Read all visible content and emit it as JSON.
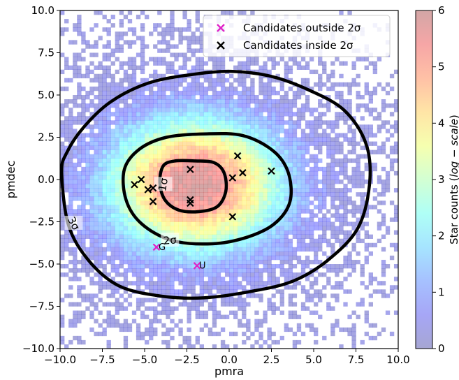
{
  "chart_data": {
    "type": "heatmap",
    "xlabel": "pmra",
    "ylabel": "pmdec",
    "xlim": [
      -10,
      10
    ],
    "ylim": [
      -10,
      10
    ],
    "xticks": [
      -10.0,
      -7.5,
      -5.0,
      -2.5,
      0.0,
      2.5,
      5.0,
      7.5,
      10.0
    ],
    "yticks": [
      -10.0,
      -7.5,
      -5.0,
      -2.5,
      0.0,
      2.5,
      5.0,
      7.5,
      10.0
    ],
    "xtick_labels": [
      "−10.0",
      "−7.5",
      "−5.0",
      "−2.5",
      "0.0",
      "2.5",
      "5.0",
      "7.5",
      "10.0"
    ],
    "ytick_labels": [
      "−10.0",
      "−7.5",
      "−5.0",
      "−2.5",
      "0.0",
      "2.5",
      "5.0",
      "7.5",
      "10.0"
    ],
    "density": {
      "center": [
        -2.0,
        -0.3
      ],
      "peak_log_count": 6,
      "bins_per_axis": 80
    },
    "colorbar": {
      "label_prefix": "Star counts (",
      "label_math": "log − scale",
      "label_suffix": ")",
      "range": [
        0,
        6
      ],
      "ticks": [
        0,
        1,
        2,
        3,
        4,
        5,
        6
      ],
      "tick_labels": [
        "0",
        "1",
        "2",
        "3",
        "4",
        "5",
        "6"
      ],
      "colormap": "jet",
      "alpha": 0.35
    },
    "contours": [
      {
        "label": "1σ",
        "label_at": [
          -3.9,
          -0.3
        ],
        "points": [
          [
            -3.9,
            0.8
          ],
          [
            -4.1,
            -0.2
          ],
          [
            -3.8,
            -1.2
          ],
          [
            -3.0,
            -1.8
          ],
          [
            -1.8,
            -1.9
          ],
          [
            -0.7,
            -1.6
          ],
          [
            -0.2,
            -0.7
          ],
          [
            -0.3,
            0.4
          ],
          [
            -0.9,
            1.0
          ],
          [
            -2.0,
            1.1
          ],
          [
            -3.2,
            1.1
          ],
          [
            -3.9,
            0.8
          ]
        ]
      },
      {
        "label": "2σ",
        "label_at": [
          -3.5,
          -3.6
        ],
        "points": [
          [
            -6.2,
            0.6
          ],
          [
            -6.1,
            -1.2
          ],
          [
            -5.2,
            -2.6
          ],
          [
            -3.4,
            -3.6
          ],
          [
            -1.0,
            -3.8
          ],
          [
            1.1,
            -3.4
          ],
          [
            2.7,
            -2.6
          ],
          [
            3.6,
            -1.3
          ],
          [
            3.5,
            0.4
          ],
          [
            2.6,
            1.7
          ],
          [
            0.8,
            2.6
          ],
          [
            -1.5,
            2.7
          ],
          [
            -3.7,
            2.5
          ],
          [
            -5.3,
            1.8
          ],
          [
            -6.2,
            0.6
          ]
        ]
      },
      {
        "label": "3σ",
        "label_at": [
          -9.2,
          -2.6
        ],
        "points": [
          [
            -9.9,
            0.4
          ],
          [
            -9.5,
            -2.7
          ],
          [
            -8.3,
            -4.8
          ],
          [
            -6.5,
            -6.3
          ],
          [
            -4.0,
            -6.9
          ],
          [
            -1.5,
            -7.0
          ],
          [
            1.4,
            -6.6
          ],
          [
            3.8,
            -6.0
          ],
          [
            5.8,
            -4.8
          ],
          [
            7.6,
            -2.9
          ],
          [
            8.3,
            -0.3
          ],
          [
            8.1,
            2.1
          ],
          [
            6.8,
            4.1
          ],
          [
            4.7,
            5.3
          ],
          [
            2.5,
            6.1
          ],
          [
            0.1,
            6.4
          ],
          [
            -2.3,
            6.2
          ],
          [
            -4.8,
            5.7
          ],
          [
            -7.0,
            4.6
          ],
          [
            -8.6,
            3.1
          ],
          [
            -9.6,
            1.6
          ],
          [
            -9.9,
            0.4
          ]
        ]
      }
    ],
    "series": [
      {
        "name": "Candidates outside 2σ",
        "marker": "x",
        "color": "#e023c8",
        "points": [
          [
            -4.3,
            -4.0
          ],
          [
            -1.9,
            -5.1
          ]
        ],
        "labels": [
          "G",
          "U"
        ]
      },
      {
        "name": "Candidates inside 2σ",
        "marker": "x",
        "color": "#000000",
        "points": [
          [
            -5.6,
            -0.3
          ],
          [
            -5.2,
            0.0
          ],
          [
            -4.8,
            -0.6
          ],
          [
            -4.5,
            -0.5
          ],
          [
            -4.5,
            -1.3
          ],
          [
            -2.3,
            0.6
          ],
          [
            -2.3,
            -1.2
          ],
          [
            -2.3,
            -1.4
          ],
          [
            0.5,
            1.4
          ],
          [
            0.2,
            0.1
          ],
          [
            0.8,
            0.4
          ],
          [
            2.5,
            0.5
          ],
          [
            0.2,
            -2.2
          ]
        ]
      }
    ],
    "legend": {
      "location": "upper right"
    },
    "grid": false
  }
}
